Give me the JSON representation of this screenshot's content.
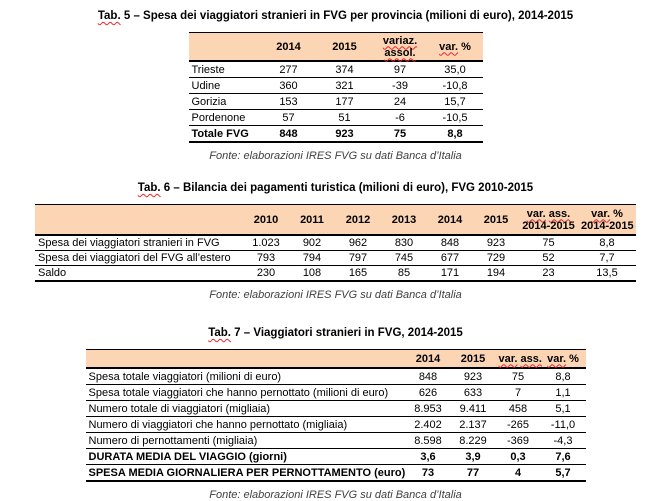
{
  "tab5": {
    "title_prefix": "Tab.",
    "title_rest": " 5 – Spesa dei viaggiatori stranieri in FVG  per provincia (milioni di euro), 2014-2015",
    "header": {
      "y2014": "2014",
      "y2015": "2015",
      "variaz": "variaz.",
      "assol": "assol.",
      "var": "var.",
      "pct": "%"
    },
    "rows": [
      {
        "cells": [
          "Trieste",
          "277",
          "374",
          "97",
          "35,0"
        ]
      },
      {
        "cells": [
          "Udine",
          "360",
          "321",
          "-39",
          "-10,8"
        ]
      },
      {
        "cells": [
          "Gorizia",
          "153",
          "177",
          "24",
          "15,7"
        ]
      },
      {
        "cells": [
          "Pordenone",
          "57",
          "51",
          "-6",
          "-10,5"
        ]
      },
      {
        "cells": [
          "Totale FVG",
          "848",
          "923",
          "75",
          "8,8"
        ],
        "bold": true
      }
    ],
    "fonte": "Fonte: elaborazioni IRES FVG su dati Banca d’Italia"
  },
  "tab6": {
    "title_prefix": "Tab.",
    "title_rest": " 6 – Bilancia dei pagamenti turistica (milioni di euro), FVG 2010-2015",
    "header": {
      "years": [
        "2010",
        "2011",
        "2012",
        "2013",
        "2014",
        "2015"
      ],
      "var": "var.",
      "ass": "ass.",
      "pct": "%",
      "period": "2014-2015"
    },
    "rows": [
      {
        "cells": [
          "Spesa dei viaggiatori stranieri in FVG",
          "1.023",
          "902",
          "962",
          "830",
          "848",
          "923",
          "75",
          "8,8"
        ]
      },
      {
        "cells": [
          "Spesa dei viaggiatori del FVG all’estero",
          "793",
          "794",
          "797",
          "745",
          "677",
          "729",
          "52",
          "7,7"
        ]
      },
      {
        "cells": [
          "Saldo",
          "230",
          "108",
          "165",
          "85",
          "171",
          "194",
          "23",
          "13,5"
        ]
      }
    ],
    "fonte": "Fonte: elaborazioni IRES FVG su dati Banca d’Italia"
  },
  "tab7": {
    "title_prefix": "Tab.",
    "title_rest": " 7 – Viaggiatori stranieri in FVG, 2014-2015",
    "header": {
      "y2014": "2014",
      "y2015": "2015",
      "var": "var.",
      "ass": "ass.",
      "pct": "%"
    },
    "rows": [
      {
        "cells": [
          "Spesa totale viaggiatori (milioni di euro)",
          "848",
          "923",
          "75",
          "8,8"
        ]
      },
      {
        "cells": [
          "Spesa totale viaggiatori che hanno pernottato (milioni di euro)",
          "626",
          "633",
          "7",
          "1,1"
        ]
      },
      {
        "cells": [
          "Numero totale di viaggiatori (migliaia)",
          "8.953",
          "9.411",
          "458",
          "5,1"
        ]
      },
      {
        "cells": [
          "Numero di viaggiatori che hanno pernottato (migliaia)",
          "2.402",
          "2.137",
          "-265",
          "-11,0"
        ]
      },
      {
        "cells": [
          "Numero di pernottamenti (migliaia)",
          "8.598",
          "8.229",
          "-369",
          "-4,3"
        ]
      },
      {
        "cells": [
          "DURATA MEDIA DEL VIAGGIO (giorni)",
          "3,6",
          "3,9",
          "0,3",
          "7,6"
        ],
        "bold": true
      },
      {
        "cells": [
          "SPESA MEDIA GIORNALIERA PER PERNOTTAMENTO (euro)",
          "73",
          "77",
          "4",
          "5,7"
        ],
        "bold": true
      }
    ],
    "fonte": "Fonte: elaborazioni IRES FVG su dati Banca d’Italia"
  }
}
